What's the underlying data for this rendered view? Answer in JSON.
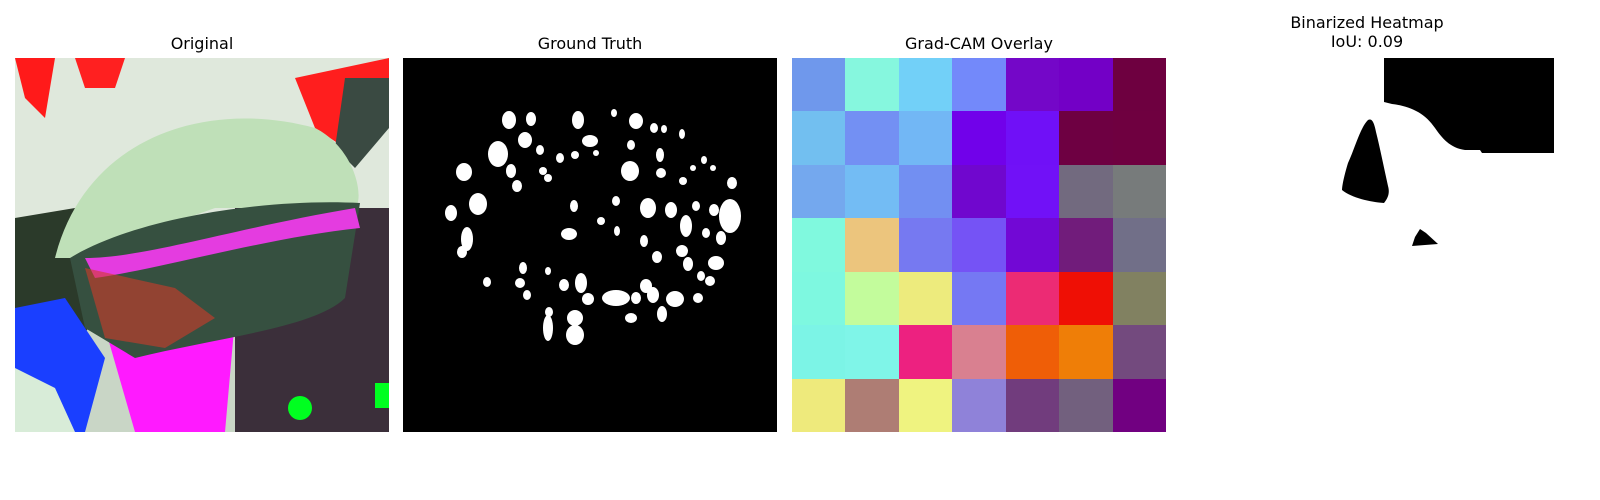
{
  "panels": [
    {
      "title": "Original"
    },
    {
      "title": "Ground Truth"
    },
    {
      "title": "Grad-CAM Overlay"
    },
    {
      "title": "Binarized Heatmap\nIoU: 0.09"
    }
  ],
  "gradcam_grid": [
    [
      "#6f98ec",
      "#86f7de",
      "#72d0f8",
      "#7389fa",
      "#7407c8",
      "#7300c6",
      "#6e0040"
    ],
    [
      "#72bff0",
      "#7390f3",
      "#72b7f5",
      "#7101ea",
      "#7010f7",
      "#6e0042",
      "#6f0040"
    ],
    [
      "#74a8ee",
      "#73bcf4",
      "#728ff2",
      "#7007ce",
      "#7111f7",
      "#726a7f",
      "#777b7b"
    ],
    [
      "#80f9de",
      "#ecc57d",
      "#7679f1",
      "#7553f5",
      "#7208d5",
      "#711c7b",
      "#716f88"
    ],
    [
      "#7ef8e0",
      "#c3fc9c",
      "#edeb7d",
      "#7578f3",
      "#ec2b74",
      "#ef0f05",
      "#818161"
    ],
    [
      "#7cf4e6",
      "#7ff5e8",
      "#ed2180",
      "#d98090",
      "#ef5e07",
      "#ef7e07",
      "#734a7e"
    ],
    [
      "#eeea7c",
      "#ae7d74",
      "#eff380",
      "#8f82d9",
      "#713c7d",
      "#72607e",
      "#710081"
    ]
  ]
}
